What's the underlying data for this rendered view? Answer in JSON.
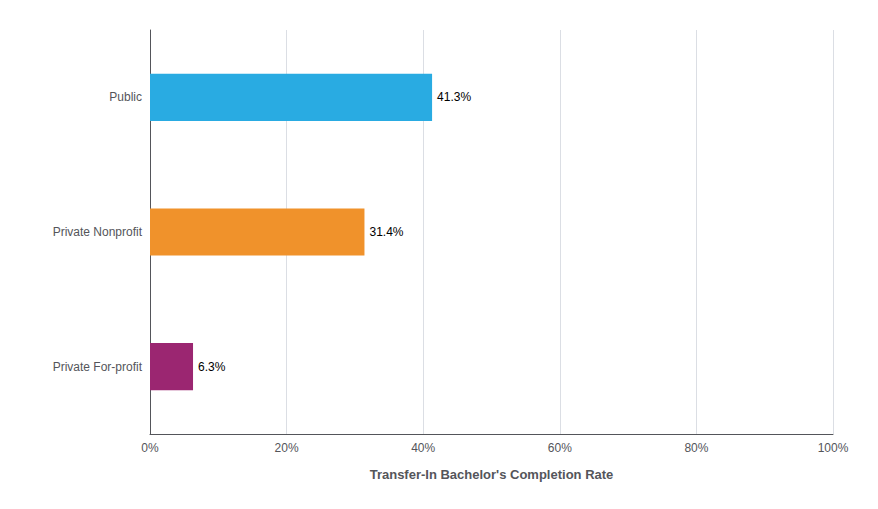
{
  "chart_data": {
    "type": "bar",
    "orientation": "horizontal",
    "categories": [
      "Private For-profit",
      "Private Nonprofit",
      "Public"
    ],
    "values": [
      6.3,
      31.4,
      41.3
    ],
    "value_labels": [
      "6.3%",
      "31.4%",
      "41.3%"
    ],
    "data_labels": true,
    "colors": [
      "#9b2671",
      "#f0922b",
      "#29abe2"
    ],
    "xlabel": "Transfer-In Bachelor's Completion Rate",
    "xlim": [
      0,
      100
    ],
    "xticks": [
      {
        "value": 0,
        "label": "0%"
      },
      {
        "value": 20,
        "label": "20%"
      },
      {
        "value": 40,
        "label": "40%"
      },
      {
        "value": 60,
        "label": "60%"
      },
      {
        "value": 80,
        "label": "80%"
      },
      {
        "value": 100,
        "label": "100%"
      }
    ],
    "grid": true
  }
}
